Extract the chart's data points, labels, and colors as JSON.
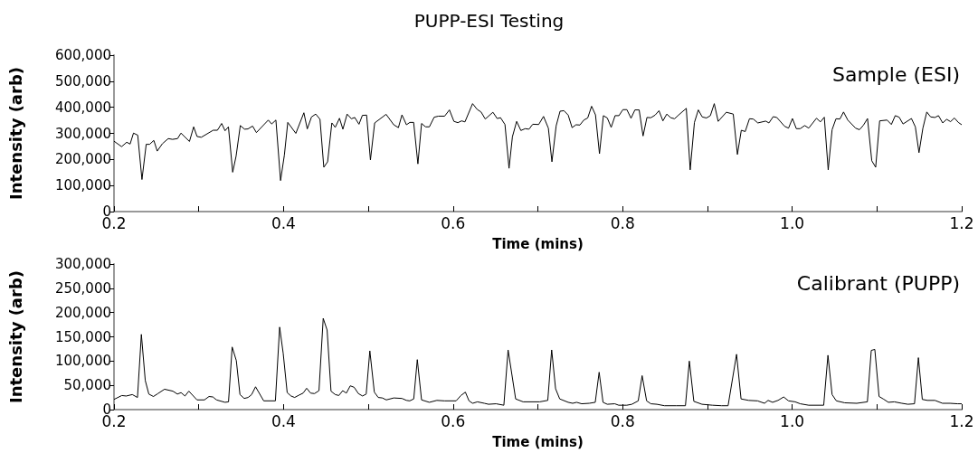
{
  "chart_data": [
    {
      "type": "line",
      "title": "PUPP-ESI Testing",
      "xlabel": "Time (mins)",
      "ylabel": "Intensity (arb)",
      "annotations": [
        "Sample (ESI)"
      ],
      "xlim": [
        0.2,
        1.2
      ],
      "xticks": [
        {
          "value": 0.2,
          "label": "0.2"
        },
        {
          "value": 0.3,
          "label": null
        },
        {
          "value": 0.4,
          "label": "0.4"
        },
        {
          "value": 0.5,
          "label": null
        },
        {
          "value": 0.6,
          "label": "0.6"
        },
        {
          "value": 0.7,
          "label": null
        },
        {
          "value": 0.8,
          "label": "0.8"
        },
        {
          "value": 0.9,
          "label": null
        },
        {
          "value": 1.0,
          "label": "1.0"
        },
        {
          "value": 1.1,
          "label": null
        },
        {
          "value": 1.2,
          "label": "1.2"
        }
      ],
      "ylim": [
        0,
        600000
      ],
      "yticks": [
        {
          "value": 0,
          "label": "0"
        },
        {
          "value": 100000,
          "label": "100,000"
        },
        {
          "value": 200000,
          "label": "200,000"
        },
        {
          "value": 300000,
          "label": "300,000"
        },
        {
          "value": 400000,
          "label": "400,000"
        },
        {
          "value": 500000,
          "label": "500,000"
        },
        {
          "value": 600000,
          "label": "600,000"
        }
      ],
      "grid": false,
      "series": [
        {
          "color": "#000000",
          "x": [
            0.2,
            0.209,
            0.215,
            0.219,
            0.223,
            0.228,
            0.233,
            0.238,
            0.242,
            0.247,
            0.251,
            0.257,
            0.264,
            0.269,
            0.275,
            0.279,
            0.289,
            0.294,
            0.298,
            0.303,
            0.317,
            0.322,
            0.327,
            0.331,
            0.335,
            0.34,
            0.344,
            0.349,
            0.354,
            0.358,
            0.3635,
            0.368,
            0.382,
            0.386,
            0.391,
            0.3965,
            0.401,
            0.405,
            0.4145,
            0.424,
            0.428,
            0.433,
            0.438,
            0.443,
            0.4475,
            0.452,
            0.457,
            0.461,
            0.466,
            0.47,
            0.475,
            0.48,
            0.484,
            0.489,
            0.493,
            0.498,
            0.5025,
            0.5075,
            0.521,
            0.53,
            0.5355,
            0.5397,
            0.545,
            0.549,
            0.5535,
            0.5585,
            0.5628,
            0.5675,
            0.572,
            0.5777,
            0.5827,
            0.59,
            0.5957,
            0.601,
            0.6057,
            0.61,
            0.614,
            0.623,
            0.6284,
            0.633,
            0.638,
            0.647,
            0.652,
            0.656,
            0.6612,
            0.666,
            0.67,
            0.675,
            0.68,
            0.685,
            0.6895,
            0.694,
            0.701,
            0.7067,
            0.7124,
            0.7166,
            0.7216,
            0.7262,
            0.7308,
            0.7358,
            0.7404,
            0.745,
            0.7496,
            0.7542,
            0.7588,
            0.7634,
            0.768,
            0.7727,
            0.7773,
            0.7819,
            0.7865,
            0.7911,
            0.7957,
            0.8003,
            0.805,
            0.8099,
            0.8145,
            0.8195,
            0.8241,
            0.8287,
            0.8333,
            0.8383,
            0.8429,
            0.8475,
            0.8521,
            0.8567,
            0.8613,
            0.8659,
            0.8751,
            0.8797,
            0.8847,
            0.8893,
            0.8939,
            0.8989,
            0.9035,
            0.9081,
            0.9127,
            0.9223,
            0.9305,
            0.9354,
            0.94,
            0.9446,
            0.9496,
            0.9542,
            0.9595,
            0.9687,
            0.9726,
            0.9776,
            0.9819,
            0.9911,
            0.9957,
            1.0003,
            1.0049,
            1.0095,
            1.0148,
            1.0195,
            1.0287,
            1.0333,
            1.0379,
            1.0425,
            1.0471,
            1.0517,
            1.0563,
            1.0606,
            1.0656,
            1.0748,
            1.0794,
            1.084,
            1.0889,
            1.0939,
            1.0985,
            1.1032,
            1.112,
            1.117,
            1.1216,
            1.1262,
            1.1308,
            1.1407,
            1.1453,
            1.1496,
            1.1542,
            1.1588,
            1.1634,
            1.1684,
            1.1726,
            1.1776,
            1.1822,
            1.1868,
            1.1914,
            1.196,
            1.2
          ],
          "values": [
            270000,
            249000,
            266000,
            259000,
            301000,
            293000,
            123000,
            258000,
            258000,
            273000,
            232000,
            260000,
            280000,
            277000,
            280000,
            301000,
            269000,
            325000,
            288000,
            285000,
            312000,
            312000,
            338000,
            310000,
            325000,
            151000,
            212000,
            330000,
            316000,
            317000,
            328000,
            303000,
            351000,
            336000,
            351000,
            119000,
            217000,
            342000,
            300000,
            379000,
            317000,
            363000,
            374000,
            354000,
            170000,
            191000,
            340000,
            323000,
            358000,
            316000,
            374000,
            356000,
            361000,
            335000,
            369000,
            370000,
            198000,
            340000,
            373000,
            333000,
            322000,
            371000,
            333000,
            342000,
            342000,
            183000,
            338000,
            325000,
            325000,
            362000,
            366000,
            366000,
            390000,
            346000,
            341000,
            348000,
            344000,
            414000,
            392000,
            382000,
            355000,
            381000,
            357000,
            360000,
            334000,
            166000,
            287000,
            346000,
            311000,
            318000,
            316000,
            335000,
            334000,
            365000,
            320000,
            191000,
            329000,
            385000,
            387000,
            370000,
            322000,
            333000,
            332000,
            351000,
            359000,
            404000,
            371000,
            222000,
            368000,
            359000,
            323000,
            368000,
            368000,
            391000,
            391000,
            358000,
            390000,
            390000,
            290000,
            361000,
            360000,
            370000,
            387000,
            348000,
            374000,
            360000,
            356000,
            370000,
            396000,
            160000,
            342000,
            390000,
            363000,
            359000,
            368000,
            414000,
            346000,
            381000,
            374000,
            219000,
            312000,
            307000,
            356000,
            355000,
            340000,
            347000,
            340000,
            364000,
            361000,
            327000,
            320000,
            357000,
            318000,
            318000,
            330000,
            320000,
            358000,
            344000,
            362000,
            160000,
            314000,
            356000,
            355000,
            382000,
            351000,
            320000,
            314000,
            331000,
            357000,
            195000,
            170000,
            348000,
            351000,
            334000,
            368000,
            362000,
            336000,
            357000,
            325000,
            226000,
            320000,
            382000,
            363000,
            361000,
            368000,
            340000,
            354000,
            345000,
            359000,
            342000,
            333000
          ]
        }
      ]
    },
    {
      "type": "line",
      "xlabel": "Time (mins)",
      "ylabel": "Intensity (arb)",
      "annotations": [
        "Calibrant (PUPP)"
      ],
      "xlim": [
        0.2,
        1.2
      ],
      "xticks": [
        {
          "value": 0.2,
          "label": "0.2"
        },
        {
          "value": 0.3,
          "label": null
        },
        {
          "value": 0.4,
          "label": "0.4"
        },
        {
          "value": 0.5,
          "label": null
        },
        {
          "value": 0.6,
          "label": "0.6"
        },
        {
          "value": 0.7,
          "label": null
        },
        {
          "value": 0.8,
          "label": "0.8"
        },
        {
          "value": 0.9,
          "label": null
        },
        {
          "value": 1.0,
          "label": "1.0"
        },
        {
          "value": 1.1,
          "label": null
        },
        {
          "value": 1.2,
          "label": "1.2"
        }
      ],
      "ylim": [
        0,
        300000
      ],
      "yticks": [
        {
          "value": 0,
          "label": "0"
        },
        {
          "value": 50000,
          "label": "50,000"
        },
        {
          "value": 100000,
          "label": "100,000"
        },
        {
          "value": 150000,
          "label": "150,000"
        },
        {
          "value": 200000,
          "label": "200,000"
        },
        {
          "value": 250000,
          "label": "250,000"
        },
        {
          "value": 300000,
          "label": "300,000"
        }
      ],
      "grid": false,
      "series": [
        {
          "color": "#000000",
          "x": [
            0.2,
            0.2092,
            0.2145,
            0.2216,
            0.2277,
            0.2323,
            0.2369,
            0.2411,
            0.2465,
            0.2518,
            0.2596,
            0.2695,
            0.2748,
            0.2791,
            0.2837,
            0.2883,
            0.2979,
            0.3067,
            0.3121,
            0.3167,
            0.3209,
            0.3309,
            0.3351,
            0.3394,
            0.3443,
            0.3486,
            0.3536,
            0.3582,
            0.3624,
            0.367,
            0.3766,
            0.3904,
            0.3954,
            0.3996,
            0.4043,
            0.4089,
            0.4131,
            0.4185,
            0.4231,
            0.4273,
            0.4319,
            0.4365,
            0.4418,
            0.4468,
            0.4514,
            0.456,
            0.461,
            0.4652,
            0.4698,
            0.4741,
            0.4787,
            0.4833,
            0.4883,
            0.4932,
            0.4975,
            0.5018,
            0.5071,
            0.5117,
            0.5166,
            0.5212,
            0.5301,
            0.5397,
            0.545,
            0.5489,
            0.5536,
            0.5578,
            0.5628,
            0.572,
            0.5809,
            0.5898,
            0.6036,
            0.6092,
            0.6145,
            0.6188,
            0.6231,
            0.6287,
            0.6369,
            0.6418,
            0.6507,
            0.6599,
            0.6649,
            0.6738,
            0.6826,
            0.7021,
            0.7117,
            0.7163,
            0.7209,
            0.7258,
            0.7358,
            0.7411,
            0.7457,
            0.7517,
            0.7606,
            0.7677,
            0.7723,
            0.7769,
            0.7819,
            0.7907,
            0.7954,
            0.8049,
            0.8109,
            0.8184,
            0.823,
            0.8283,
            0.8333,
            0.8404,
            0.8493,
            0.8634,
            0.8741,
            0.8787,
            0.884,
            0.8936,
            0.906,
            0.9166,
            0.9244,
            0.9344,
            0.9397,
            0.9486,
            0.9592,
            0.9674,
            0.9716,
            0.9769,
            0.9833,
            0.99,
            0.9957,
            1.0035,
            1.0095,
            1.0195,
            1.0372,
            1.0422,
            1.0471,
            1.0521,
            1.062,
            1.0762,
            1.0887,
            1.0933,
            1.0975,
            1.1025,
            1.1074,
            1.1135,
            1.1205,
            1.1294,
            1.1365,
            1.1443,
            1.1489,
            1.1535,
            1.1595,
            1.1684,
            1.1773,
            1.1862,
            1.195,
            1.2
          ],
          "values": [
            21000,
            29000,
            28000,
            31000,
            25000,
            155000,
            60000,
            32000,
            27000,
            33000,
            42000,
            38000,
            32000,
            35000,
            28000,
            38000,
            20000,
            20000,
            27000,
            26000,
            20000,
            15000,
            16000,
            129000,
            101000,
            31000,
            23000,
            25000,
            31000,
            47000,
            18000,
            18000,
            170000,
            116000,
            35000,
            28000,
            25000,
            30000,
            34000,
            44000,
            34000,
            33000,
            39000,
            188000,
            164000,
            38000,
            31000,
            29000,
            39000,
            34000,
            49000,
            46000,
            33000,
            28000,
            32000,
            121000,
            36000,
            25000,
            24000,
            20000,
            24000,
            23000,
            19000,
            18000,
            22000,
            103000,
            20000,
            15000,
            19000,
            18000,
            18000,
            29000,
            36000,
            18000,
            13000,
            16000,
            13000,
            11000,
            12000,
            9000,
            123000,
            22000,
            16000,
            16000,
            19000,
            123000,
            43000,
            22000,
            15000,
            13000,
            15000,
            12000,
            13000,
            15000,
            77000,
            15000,
            11000,
            12000,
            9000,
            9000,
            11000,
            18000,
            70000,
            18000,
            12000,
            11000,
            8000,
            8000,
            8000,
            100000,
            17000,
            11000,
            9000,
            8000,
            8000,
            114000,
            22000,
            19000,
            18000,
            13000,
            19000,
            15000,
            19000,
            26000,
            18000,
            16000,
            12000,
            9000,
            9000,
            112000,
            31000,
            18000,
            14000,
            13000,
            16000,
            122000,
            124000,
            27000,
            22000,
            15000,
            16000,
            13000,
            11000,
            12000,
            107000,
            21000,
            19000,
            19000,
            13000,
            13000,
            12000,
            12000
          ]
        }
      ]
    }
  ]
}
